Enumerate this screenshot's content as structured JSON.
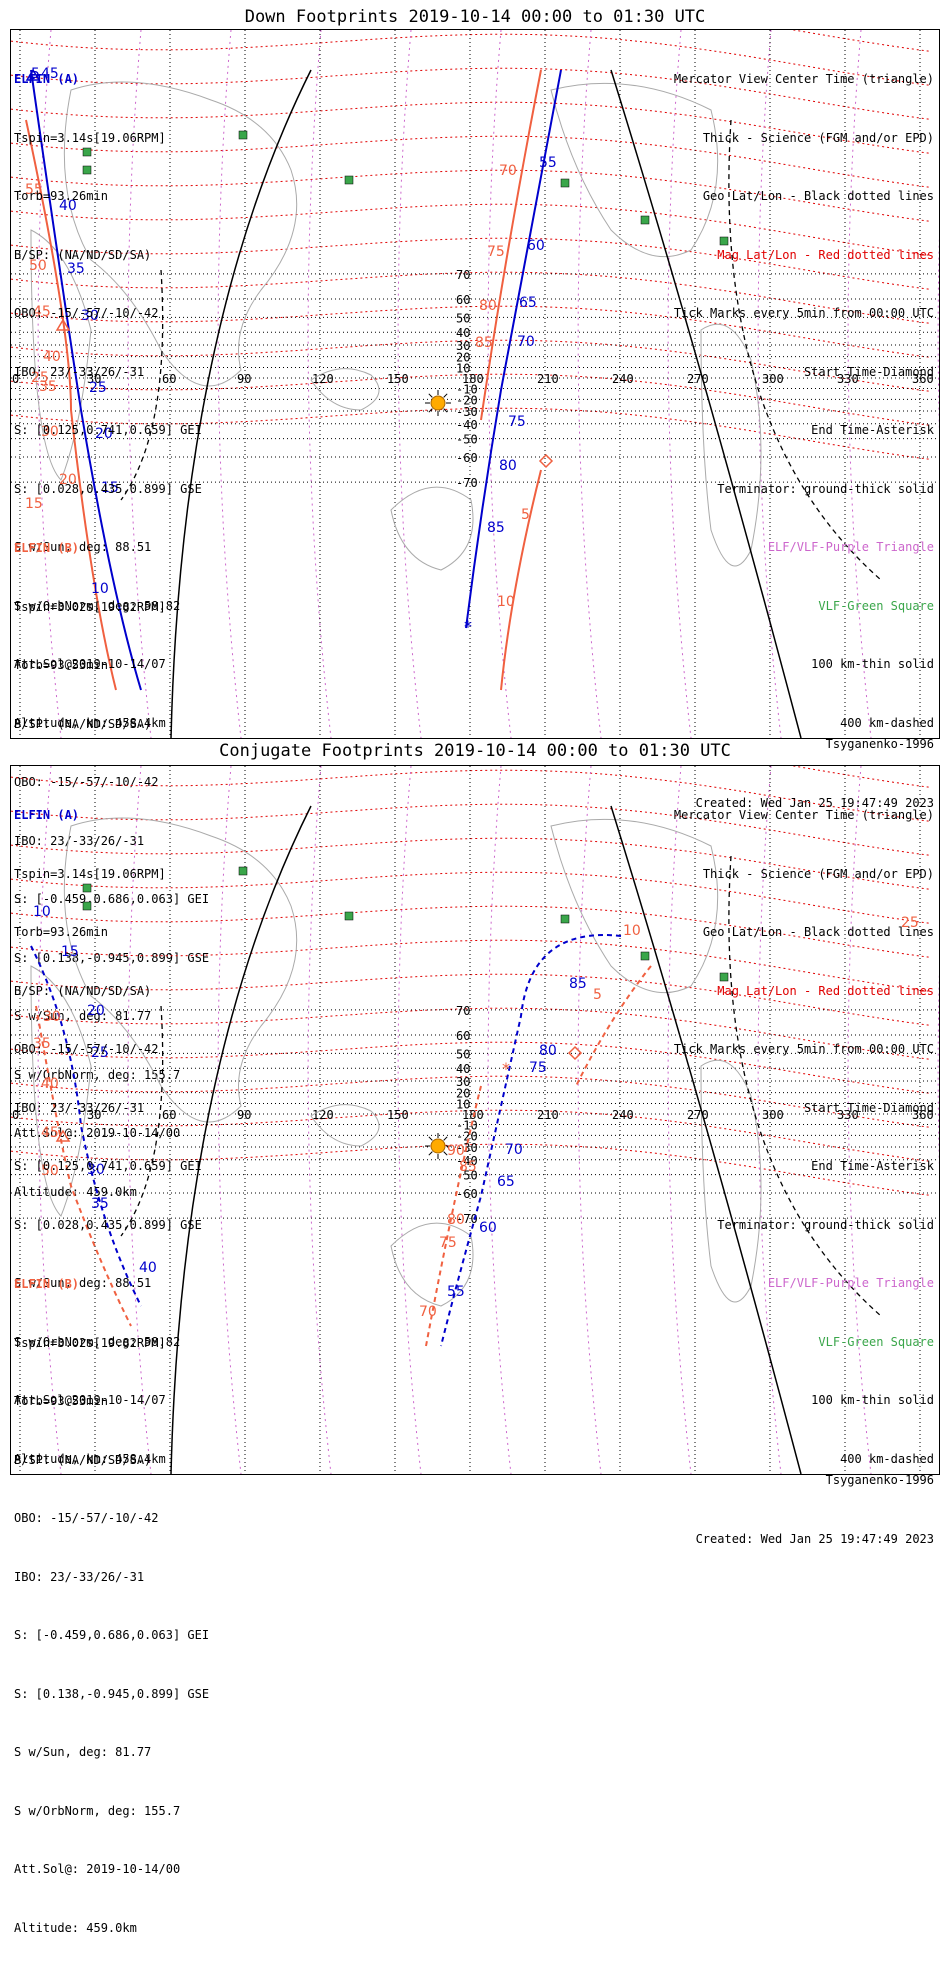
{
  "colors": {
    "elfin_a": "#0000cc",
    "elfin_b": "#f06040",
    "mag_grid": "#e00000",
    "geo_grid": "#000000",
    "elf_vlf_triangle": "#cc66cc",
    "vlf_square": "#3aa64a",
    "sun": "#ffaa00",
    "land": "#aaaaaa"
  },
  "icons": {
    "sun": "sun-icon",
    "start": "diamond-icon",
    "end": "asterisk-icon",
    "center": "triangle-icon",
    "station": "green-square-icon"
  },
  "panels": [
    {
      "title": "Down Footprints 2019-10-14 00:00 to 01:30 UTC",
      "elfin_a": {
        "header": "ELFIN (A)",
        "lines": [
          "Tspin=3.14s[19.06RPM]",
          "Torb=93.26min",
          "B/SP: (NA/ND/SD/SA)",
          "OBO: -15/-57/-10/-42",
          "IBO: 23/-33/26/-31",
          "S: [0.125,0.741,0.659] GEI",
          "S: [0.028,0.435,0.899] GSE",
          "S w/Sun, deg: 88.51",
          "S w/OrbNorm, deg: 58.82",
          "Att.Sol@2019-10-14/07",
          "Altitude, km: 458.4km"
        ]
      },
      "elfin_b": {
        "header": "ELFIN (B)",
        "lines": [
          "Tspin=3.02s[19.82RPM]",
          "Torb=93.53min",
          "B/SP: (NA/ND/SD/SA)",
          "OBO: -15/-57/-10/-42",
          "IBO: 23/-33/26/-31",
          "S: [-0.459,0.686,0.063] GEI",
          "S: [0.138,-0.945,0.899] GSE",
          "S w/Sun, deg: 81.77",
          "S w/OrbNorm, deg: 155.7",
          "Att.Sol@: 2019-10-14/00",
          "Altitude: 459.0km"
        ]
      },
      "legend": [
        "Mercator View Center Time (triangle)",
        "Thick - Science (FGM and/or EPD)",
        "Geo Lat/Lon - Black dotted lines",
        "Mag Lat/Lon - Red dotted lines",
        "Tick Marks every 5min from 00:00 UTC",
        "Start Time-Diamond",
        "End Time-Asterisk",
        "Terminator: ground-thick solid",
        "ELF/VLF-Purple Triangle",
        "VLF-Green Square",
        "100 km-thin solid",
        "400 km-dashed"
      ],
      "footer_model": "Tsyganenko-1996",
      "footer_created": "Created: Wed Jan 25 19:47:49 2023",
      "track_a_ticks": [
        "55",
        "60",
        "65",
        "70",
        "75",
        "80",
        "85",
        "5",
        "10",
        "15",
        "20",
        "25",
        "30",
        "35",
        "40",
        "45"
      ],
      "track_b_ticks": [
        "70",
        "75",
        "80",
        "85",
        "5",
        "10",
        "15",
        "20",
        "25",
        "30",
        "35",
        "40",
        "45",
        "50",
        "55"
      ]
    },
    {
      "title": "Conjugate Footprints 2019-10-14 00:00 to 01:30 UTC",
      "elfin_a": {
        "header": "ELFIN (A)",
        "lines": [
          "Tspin=3.14s[19.06RPM]",
          "Torb=93.26min",
          "B/SP: (NA/ND/SD/SA)",
          "OBO: -15/-57/-10/-42",
          "IBO: 23/-33/26/-31",
          "S: [0.125,0.741,0.659] GEI",
          "S: [0.028,0.435,0.899] GSE",
          "S w/Sun, deg: 88.51",
          "S w/OrbNorm, deg: 58.82",
          "Att.Sol@2019-10-14/07",
          "Altitude, km: 458.4km"
        ]
      },
      "elfin_b": {
        "header": "ELFIN (B)",
        "lines": [
          "Tspin=3.02s[19.82RPM]",
          "Torb=93.53min",
          "B/SP: (NA/ND/SD/SA)",
          "OBO: -15/-57/-10/-42",
          "IBO: 23/-33/26/-31",
          "S: [-0.459,0.686,0.063] GEI",
          "S: [0.138,-0.945,0.899] GSE",
          "S w/Sun, deg: 81.77",
          "S w/OrbNorm, deg: 155.7",
          "Att.Sol@: 2019-10-14/00",
          "Altitude: 459.0km"
        ]
      },
      "legend": [
        "Mercator View Center Time (triangle)",
        "Thick - Science (FGM and/or EPD)",
        "Geo Lat/Lon - Black dotted lines",
        "Mag Lat/Lon - Red dotted lines",
        "Tick Marks every 5min from 00:00 UTC",
        "Start Time-Diamond",
        "End Time-Asterisk",
        "Terminator: ground-thick solid",
        "ELF/VLF-Purple Triangle",
        "VLF-Green Square",
        "100 km-thin solid",
        "400 km-dashed"
      ],
      "footer_model": "Tsyganenko-1996",
      "footer_created": "Created: Wed Jan 25 19:47:49 2023",
      "track_a_ticks": [
        "85",
        "80",
        "75",
        "70",
        "65",
        "60",
        "55",
        "10",
        "15",
        "20",
        "25",
        "30",
        "35",
        "40"
      ],
      "track_b_ticks": [
        "10",
        "5",
        "90",
        "85",
        "80",
        "75",
        "70",
        "30",
        "35",
        "40",
        "45",
        "50",
        "25"
      ]
    }
  ],
  "lon_labels": [
    "0",
    "30",
    "60",
    "90",
    "120",
    "150",
    "180",
    "210",
    "240",
    "270",
    "300",
    "330",
    "360"
  ],
  "lat_labels": [
    "70",
    "60",
    "50",
    "40",
    "30",
    "20",
    "10",
    "-10",
    "-20",
    "-30",
    "-40",
    "-50",
    "-60",
    "-70"
  ]
}
